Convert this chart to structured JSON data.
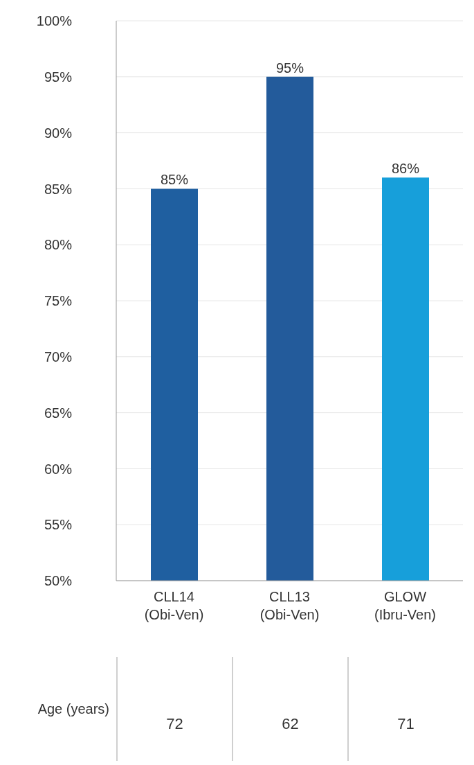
{
  "chart_data": {
    "type": "bar",
    "categories": [
      "CLL14 (Obi-Ven)",
      "CLL13 (Obi-Ven)",
      "GLOW (Ibru-Ven)"
    ],
    "values": [
      85,
      95,
      86
    ],
    "colors": [
      "#1f5fa0",
      "#235b9b",
      "#179fda"
    ],
    "value_labels": [
      "85%",
      "95%",
      "86%"
    ],
    "ylim": [
      50,
      100
    ],
    "yticks": [
      {
        "value": 50,
        "label": "50%"
      },
      {
        "value": 55,
        "label": "55%"
      },
      {
        "value": 60,
        "label": "60%"
      },
      {
        "value": 65,
        "label": "65%"
      },
      {
        "value": 70,
        "label": "70%"
      },
      {
        "value": 75,
        "label": "75%"
      },
      {
        "value": 80,
        "label": "80%"
      },
      {
        "value": 85,
        "label": "85%"
      },
      {
        "value": 90,
        "label": "90%"
      },
      {
        "value": 95,
        "label": "95%"
      },
      {
        "value": 100,
        "label": "100%"
      }
    ],
    "grid": "y",
    "annotations": [
      "Age (years)",
      "72",
      "62",
      "71"
    ]
  }
}
